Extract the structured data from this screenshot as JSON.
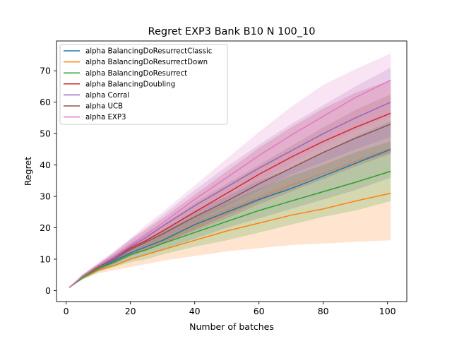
{
  "chart_data": {
    "type": "line",
    "title": "Regret EXP3 Bank B10 N 100_10",
    "xlabel": "Number of batches",
    "ylabel": "Regret",
    "xlim": [
      -3,
      106
    ],
    "ylim": [
      -3.5,
      79.5
    ],
    "xticks": [
      0,
      20,
      40,
      60,
      80,
      100
    ],
    "yticks": [
      0,
      10,
      20,
      30,
      40,
      50,
      60,
      70
    ],
    "grid": false,
    "legend_position": "top-left",
    "x": [
      1,
      5,
      10,
      15,
      20,
      25,
      30,
      40,
      50,
      60,
      70,
      80,
      90,
      101
    ],
    "series": [
      {
        "name": "alpha BalancingDoResurrectClassic",
        "color": "#1f77b4",
        "mean": [
          1,
          4,
          7,
          9.5,
          12,
          14,
          16,
          21,
          25,
          29,
          32.5,
          36.5,
          40.5,
          45
        ],
        "lower": [
          1,
          3.5,
          6,
          8,
          10,
          11.5,
          13,
          16.5,
          20,
          23,
          26,
          29,
          32,
          36
        ],
        "upper": [
          1,
          4.5,
          8,
          11,
          14,
          16.5,
          19,
          25.5,
          30,
          35,
          39,
          44,
          49,
          54
        ]
      },
      {
        "name": "alpha BalancingDoResurrectDown",
        "color": "#ff7f0e",
        "mean": [
          1,
          4,
          6.5,
          8,
          10,
          11.5,
          13,
          16,
          19,
          21.5,
          24,
          26,
          28.5,
          31
        ],
        "lower": [
          1,
          3.5,
          5.5,
          6.5,
          7.5,
          8.5,
          9.5,
          11,
          12.5,
          13.5,
          14.5,
          15,
          15.5,
          16
        ],
        "upper": [
          1,
          4.5,
          7.5,
          10,
          12,
          15,
          17,
          22,
          26,
          30,
          34,
          37.5,
          41.5,
          45.5
        ]
      },
      {
        "name": "alpha BalancingDoResurrect",
        "color": "#2ca02c",
        "mean": [
          1,
          4,
          7,
          9,
          11.5,
          13,
          15,
          18.5,
          22,
          25.5,
          28.5,
          31.5,
          34.5,
          38
        ],
        "lower": [
          1,
          3.5,
          6,
          7.5,
          9,
          10,
          11.5,
          14,
          16,
          18.5,
          21,
          23.5,
          25.5,
          28.5
        ],
        "upper": [
          1,
          4.5,
          8,
          10.5,
          14,
          16,
          19,
          23.5,
          28,
          32.5,
          36.5,
          40,
          44,
          47.5
        ]
      },
      {
        "name": "alpha BalancingDoubling",
        "color": "#d62728",
        "mean": [
          1,
          4.5,
          7.5,
          10.5,
          13.5,
          16,
          19,
          25,
          31,
          37,
          42.5,
          47.5,
          52,
          56.5
        ],
        "lower": [
          1,
          4,
          6.5,
          9,
          11,
          13,
          15,
          19.5,
          24,
          28.5,
          33,
          37,
          40.5,
          44
        ],
        "upper": [
          1,
          5,
          8.5,
          12,
          16,
          19.5,
          23,
          30.5,
          38,
          45.5,
          52,
          58,
          63,
          67
        ]
      },
      {
        "name": "alpha Corral",
        "color": "#9467bd",
        "mean": [
          1,
          4.5,
          7.5,
          10.5,
          14,
          17,
          20.5,
          27,
          33,
          39,
          44.5,
          50,
          55,
          60
        ],
        "lower": [
          1,
          4,
          6.5,
          9,
          12,
          14.5,
          17,
          22,
          27,
          32,
          37,
          41,
          45,
          49
        ],
        "upper": [
          1,
          5,
          8.5,
          12.5,
          16.5,
          20,
          24,
          32,
          39.5,
          46.5,
          53,
          59,
          65,
          71
        ]
      },
      {
        "name": "alpha UCB",
        "color": "#8c564b",
        "mean": [
          1,
          4.5,
          7.5,
          10,
          13,
          15.5,
          18,
          23.5,
          28.5,
          34,
          39,
          44,
          48.5,
          53
        ],
        "lower": [
          1,
          4,
          6.5,
          8.5,
          11,
          13,
          15,
          19,
          23,
          27.5,
          31.5,
          35.5,
          39.5,
          43.5
        ],
        "upper": [
          1,
          5,
          8.5,
          11.5,
          15,
          18,
          21,
          28,
          34,
          40,
          46,
          52,
          57.5,
          62.5
        ]
      },
      {
        "name": "alpha EXP3",
        "color": "#e377c2",
        "mean": [
          1,
          4.5,
          8,
          11,
          14.5,
          18,
          21.5,
          29,
          36,
          43,
          49.5,
          55.5,
          61.5,
          67
        ],
        "lower": [
          1,
          4,
          7,
          9.5,
          12.5,
          15,
          18,
          24,
          29.5,
          35,
          40.5,
          46,
          51,
          55.5
        ],
        "upper": [
          1,
          5,
          9,
          12.5,
          16.5,
          21,
          25,
          33.5,
          42,
          50.5,
          58.5,
          65.5,
          70.5,
          75.5
        ]
      }
    ]
  }
}
